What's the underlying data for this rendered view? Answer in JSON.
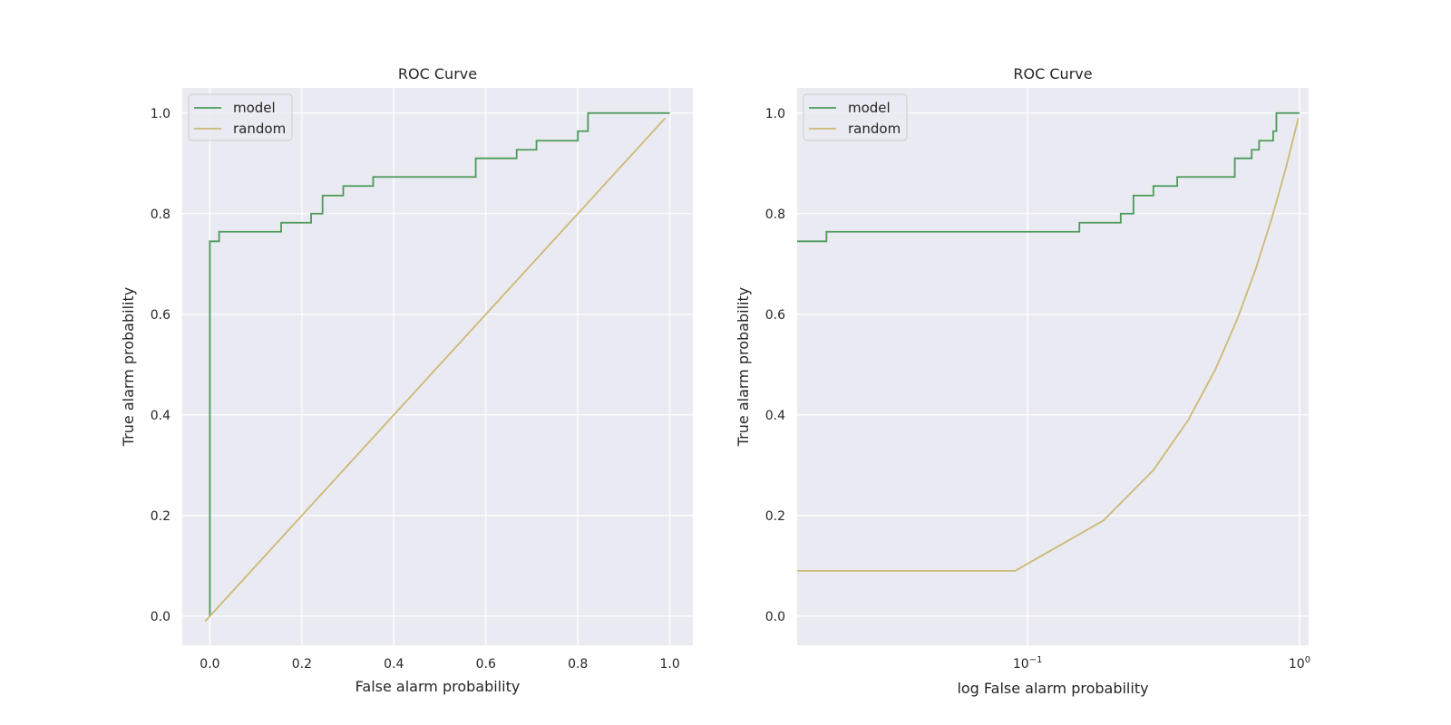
{
  "chart_data": [
    {
      "type": "line",
      "title": "ROC Curve",
      "xlabel": "False alarm probability",
      "ylabel": "True alarm probability",
      "xscale": "linear",
      "xlim": [
        -0.06,
        1.05
      ],
      "ylim": [
        -0.058,
        1.05
      ],
      "xticks": [
        0.0,
        0.2,
        0.4,
        0.6,
        0.8,
        1.0
      ],
      "xtick_labels": [
        "0.0",
        "0.2",
        "0.4",
        "0.6",
        "0.8",
        "1.0"
      ],
      "yticks": [
        0.0,
        0.2,
        0.4,
        0.6,
        0.8,
        1.0
      ],
      "ytick_labels": [
        "0.0",
        "0.2",
        "0.4",
        "0.6",
        "0.8",
        "1.0"
      ],
      "grid": true,
      "legend_position": "upper-left",
      "series": [
        {
          "name": "model",
          "color": "#4c9a5a",
          "step": true,
          "x": [
            0.0,
            0.0,
            0.02,
            0.02,
            0.155,
            0.155,
            0.22,
            0.22,
            0.245,
            0.245,
            0.29,
            0.29,
            0.355,
            0.355,
            0.578,
            0.578,
            0.667,
            0.667,
            0.71,
            0.71,
            0.8,
            0.8,
            0.822,
            0.822,
            1.0
          ],
          "y": [
            0.0,
            0.745,
            0.745,
            0.764,
            0.764,
            0.782,
            0.782,
            0.8,
            0.8,
            0.836,
            0.836,
            0.855,
            0.855,
            0.873,
            0.873,
            0.91,
            0.91,
            0.927,
            0.927,
            0.945,
            0.945,
            0.964,
            0.964,
            1.0,
            1.0
          ]
        },
        {
          "name": "random",
          "color": "#ccb974",
          "step": false,
          "x": [
            -0.01,
            0.99
          ],
          "y": [
            -0.01,
            0.99
          ]
        }
      ]
    },
    {
      "type": "line",
      "title": "ROC Curve",
      "xlabel": "log False alarm probability",
      "ylabel": "True alarm probability",
      "xscale": "log",
      "xlim": [
        0.0142,
        1.08
      ],
      "ylim": [
        -0.058,
        1.05
      ],
      "xticks": [
        0.1,
        1.0
      ],
      "xtick_labels": [
        [
          "10",
          "−1"
        ],
        [
          "10",
          "0"
        ]
      ],
      "yticks": [
        0.0,
        0.2,
        0.4,
        0.6,
        0.8,
        1.0
      ],
      "ytick_labels": [
        "0.0",
        "0.2",
        "0.4",
        "0.6",
        "0.8",
        "1.0"
      ],
      "grid": true,
      "legend_position": "upper-left",
      "series": [
        {
          "name": "model",
          "color": "#4c9a5a",
          "step": true,
          "x": [
            0.0142,
            0.0182,
            0.0182,
            0.155,
            0.155,
            0.22,
            0.22,
            0.245,
            0.245,
            0.29,
            0.29,
            0.355,
            0.355,
            0.578,
            0.578,
            0.667,
            0.667,
            0.71,
            0.71,
            0.8,
            0.8,
            0.822,
            0.822,
            1.0
          ],
          "y": [
            0.745,
            0.745,
            0.764,
            0.764,
            0.782,
            0.782,
            0.8,
            0.8,
            0.836,
            0.836,
            0.855,
            0.855,
            0.873,
            0.873,
            0.91,
            0.91,
            0.927,
            0.927,
            0.945,
            0.945,
            0.964,
            0.964,
            1.0,
            1.0
          ]
        },
        {
          "name": "random",
          "color": "#ccb974",
          "step": false,
          "x": [
            0.0142,
            0.09,
            0.19,
            0.29,
            0.39,
            0.49,
            0.59,
            0.69,
            0.79,
            0.89,
            0.99
          ],
          "y": [
            0.09,
            0.09,
            0.19,
            0.29,
            0.39,
            0.49,
            0.59,
            0.69,
            0.79,
            0.89,
            0.99
          ]
        }
      ]
    }
  ],
  "colors": {
    "axes_background": "#eaeaf2",
    "grid": "#ffffff",
    "text": "#262626"
  }
}
